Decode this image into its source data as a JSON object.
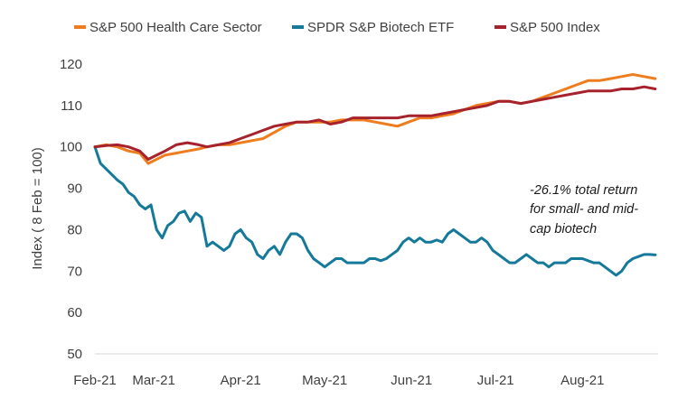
{
  "chart_data": {
    "type": "line",
    "ylabel": "Index ( 8 Feb = 100)",
    "xlabel": "",
    "ylim": [
      50,
      120
    ],
    "yticks": [
      50,
      60,
      70,
      80,
      90,
      100,
      110,
      120
    ],
    "x_ticks": [
      {
        "label": "Feb-21",
        "t": 0
      },
      {
        "label": "Mar-21",
        "t": 21
      },
      {
        "label": "Apr-21",
        "t": 52
      },
      {
        "label": "May-21",
        "t": 82
      },
      {
        "label": "Jun-21",
        "t": 113
      },
      {
        "label": "Jul-21",
        "t": 143
      },
      {
        "label": "Aug-21",
        "t": 174
      }
    ],
    "x_range": [
      0,
      201
    ],
    "legend": "top",
    "grid": false,
    "annotation": [
      "-26.1% total return",
      "for small- and mid-",
      "cap biotech"
    ],
    "series": [
      {
        "name": "S&P 500 Health Care Sector",
        "color": "#ED7D1E",
        "points": [
          [
            0,
            100
          ],
          [
            4,
            100.5
          ],
          [
            8,
            100
          ],
          [
            12,
            99
          ],
          [
            16,
            98.5
          ],
          [
            19,
            96
          ],
          [
            22,
            97
          ],
          [
            25,
            98
          ],
          [
            29,
            98.5
          ],
          [
            33,
            99
          ],
          [
            37,
            99.5
          ],
          [
            40,
            100
          ],
          [
            44,
            100.5
          ],
          [
            48,
            100.5
          ],
          [
            52,
            101
          ],
          [
            56,
            101.5
          ],
          [
            60,
            102
          ],
          [
            64,
            103.5
          ],
          [
            68,
            105
          ],
          [
            72,
            106
          ],
          [
            76,
            106
          ],
          [
            80,
            106
          ],
          [
            84,
            106
          ],
          [
            88,
            106.5
          ],
          [
            92,
            106.5
          ],
          [
            96,
            106.5
          ],
          [
            100,
            106
          ],
          [
            104,
            105.5
          ],
          [
            108,
            105
          ],
          [
            112,
            106
          ],
          [
            116,
            107
          ],
          [
            120,
            107
          ],
          [
            124,
            107.5
          ],
          [
            128,
            108
          ],
          [
            132,
            109
          ],
          [
            136,
            110
          ],
          [
            140,
            110.5
          ],
          [
            144,
            111
          ],
          [
            148,
            111
          ],
          [
            152,
            110.5
          ],
          [
            156,
            111
          ],
          [
            160,
            112
          ],
          [
            164,
            113
          ],
          [
            168,
            114
          ],
          [
            172,
            115
          ],
          [
            176,
            116
          ],
          [
            180,
            116
          ],
          [
            184,
            116.5
          ],
          [
            188,
            117
          ],
          [
            192,
            117.5
          ],
          [
            196,
            117
          ],
          [
            200,
            116.5
          ]
        ]
      },
      {
        "name": "SPDR S&P Biotech ETF",
        "color": "#15799A",
        "points": [
          [
            0,
            100
          ],
          [
            2,
            96
          ],
          [
            5,
            94
          ],
          [
            8,
            92
          ],
          [
            10,
            91
          ],
          [
            12,
            89
          ],
          [
            14,
            88
          ],
          [
            16,
            86
          ],
          [
            18,
            85
          ],
          [
            20,
            86
          ],
          [
            22,
            80
          ],
          [
            24,
            78
          ],
          [
            26,
            81
          ],
          [
            28,
            82
          ],
          [
            30,
            84
          ],
          [
            32,
            84.5
          ],
          [
            34,
            82
          ],
          [
            36,
            84
          ],
          [
            38,
            83
          ],
          [
            40,
            76
          ],
          [
            42,
            77
          ],
          [
            44,
            76
          ],
          [
            46,
            75
          ],
          [
            48,
            76
          ],
          [
            50,
            79
          ],
          [
            52,
            80
          ],
          [
            54,
            78
          ],
          [
            56,
            77
          ],
          [
            58,
            74
          ],
          [
            60,
            73
          ],
          [
            62,
            75
          ],
          [
            64,
            76
          ],
          [
            66,
            74
          ],
          [
            68,
            77
          ],
          [
            70,
            79
          ],
          [
            72,
            79
          ],
          [
            74,
            78
          ],
          [
            76,
            75
          ],
          [
            78,
            73
          ],
          [
            80,
            72
          ],
          [
            82,
            71
          ],
          [
            84,
            72
          ],
          [
            86,
            73
          ],
          [
            88,
            73
          ],
          [
            90,
            72
          ],
          [
            92,
            72
          ],
          [
            94,
            72
          ],
          [
            96,
            72
          ],
          [
            98,
            73
          ],
          [
            100,
            73
          ],
          [
            102,
            72.5
          ],
          [
            104,
            73
          ],
          [
            106,
            74
          ],
          [
            108,
            75
          ],
          [
            110,
            77
          ],
          [
            112,
            78
          ],
          [
            114,
            77
          ],
          [
            116,
            78
          ],
          [
            118,
            77
          ],
          [
            120,
            77
          ],
          [
            122,
            77.5
          ],
          [
            124,
            77
          ],
          [
            126,
            79
          ],
          [
            128,
            80
          ],
          [
            130,
            79
          ],
          [
            132,
            78
          ],
          [
            134,
            77
          ],
          [
            136,
            77
          ],
          [
            138,
            78
          ],
          [
            140,
            77
          ],
          [
            142,
            75
          ],
          [
            144,
            74
          ],
          [
            146,
            73
          ],
          [
            148,
            72
          ],
          [
            150,
            72
          ],
          [
            152,
            73
          ],
          [
            154,
            74
          ],
          [
            156,
            73
          ],
          [
            158,
            72
          ],
          [
            160,
            72
          ],
          [
            162,
            71
          ],
          [
            164,
            72
          ],
          [
            166,
            72
          ],
          [
            168,
            72
          ],
          [
            170,
            73
          ],
          [
            172,
            73
          ],
          [
            174,
            73
          ],
          [
            176,
            72.5
          ],
          [
            178,
            72
          ],
          [
            180,
            72
          ],
          [
            182,
            71
          ],
          [
            184,
            70
          ],
          [
            186,
            69
          ],
          [
            188,
            70
          ],
          [
            190,
            72
          ],
          [
            192,
            73
          ],
          [
            194,
            73.5
          ],
          [
            196,
            74
          ],
          [
            198,
            74
          ],
          [
            200,
            73.9
          ]
        ]
      },
      {
        "name": "S&P 500 Index",
        "color": "#A6222D",
        "points": [
          [
            0,
            100
          ],
          [
            4,
            100.3
          ],
          [
            8,
            100.5
          ],
          [
            12,
            100
          ],
          [
            16,
            99
          ],
          [
            19,
            97
          ],
          [
            22,
            98
          ],
          [
            25,
            99
          ],
          [
            29,
            100.5
          ],
          [
            33,
            101
          ],
          [
            37,
            100.5
          ],
          [
            40,
            100
          ],
          [
            44,
            100.5
          ],
          [
            48,
            101
          ],
          [
            52,
            102
          ],
          [
            56,
            103
          ],
          [
            60,
            104
          ],
          [
            64,
            105
          ],
          [
            68,
            105.5
          ],
          [
            72,
            106
          ],
          [
            76,
            106
          ],
          [
            80,
            106.5
          ],
          [
            84,
            105.5
          ],
          [
            88,
            106
          ],
          [
            92,
            107
          ],
          [
            96,
            107
          ],
          [
            100,
            107
          ],
          [
            104,
            107
          ],
          [
            108,
            107
          ],
          [
            112,
            107.5
          ],
          [
            116,
            107.5
          ],
          [
            120,
            107.5
          ],
          [
            124,
            108
          ],
          [
            128,
            108.5
          ],
          [
            132,
            109
          ],
          [
            136,
            109.5
          ],
          [
            140,
            110
          ],
          [
            144,
            111
          ],
          [
            148,
            111
          ],
          [
            152,
            110.5
          ],
          [
            156,
            111
          ],
          [
            160,
            111.5
          ],
          [
            164,
            112
          ],
          [
            168,
            112.5
          ],
          [
            172,
            113
          ],
          [
            176,
            113.5
          ],
          [
            180,
            113.5
          ],
          [
            184,
            113.5
          ],
          [
            188,
            114
          ],
          [
            192,
            114
          ],
          [
            196,
            114.5
          ],
          [
            200,
            114
          ]
        ]
      }
    ]
  }
}
